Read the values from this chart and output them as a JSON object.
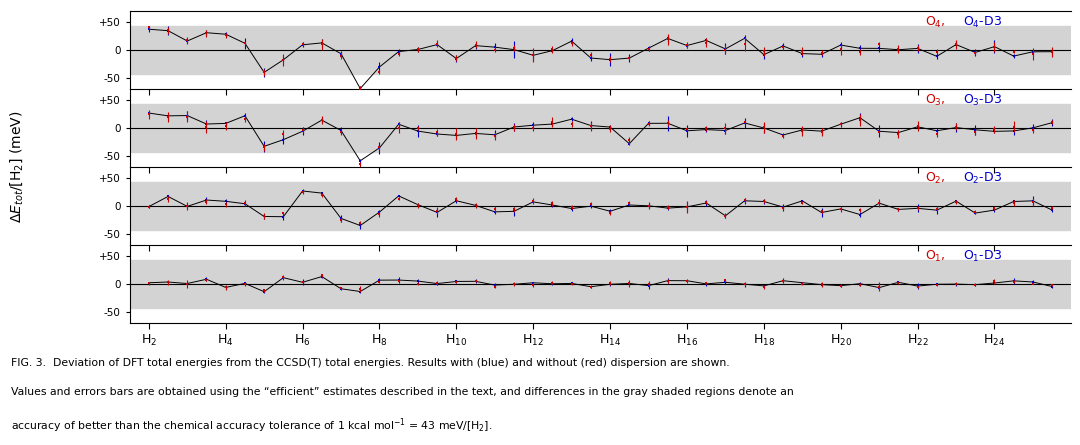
{
  "n_clusters": 48,
  "x_start": 2,
  "x_step": 0.5,
  "x_labels": [
    "H$_2$",
    "H$_4$",
    "H$_6$",
    "H$_8$",
    "H$_{10}$",
    "H$_{12}$",
    "H$_{14}$",
    "H$_{16}$",
    "H$_{18}$",
    "H$_{20}$",
    "H$_{22}$",
    "H$_{24}$"
  ],
  "x_ticks": [
    2,
    4,
    6,
    8,
    10,
    12,
    14,
    16,
    18,
    20,
    22,
    24
  ],
  "panel_labels_red": [
    "O$_4$",
    "O$_3$",
    "O$_2$",
    "O$_1$"
  ],
  "panel_labels_blue": [
    "O$_4$-D3",
    "O$_3$-D3",
    "O$_2$-D3",
    "O$_1$-D3"
  ],
  "ylim": [
    -70,
    70
  ],
  "yticks": [
    50,
    0,
    -50
  ],
  "ytick_labels": [
    "+50",
    "0",
    "-50"
  ],
  "shaded_band": 43,
  "color_red": "#cc0000",
  "color_blue": "#0000cc",
  "bg_color": "#ffffff",
  "shade_color": "#d3d3d3",
  "fig_caption_line1": "FIG. 3.  Deviation of DFT total energies from the CCSD(T) total energies. Results with (blue) and without (red) dispersion are shown.",
  "fig_caption_line2": "Values and errors bars are obtained using the “efficient” estimates described in the text, and differences in the gray shaded regions denote an",
  "fig_caption_line3": "accuracy of better than the chemical accuracy tolerance of 1 kcal mol$^{-1}$ = 43 meV/[H$_2$].",
  "ylabel": "$\\Delta E_{tot}/[\\mathrm{H}_2]$ (meV)"
}
